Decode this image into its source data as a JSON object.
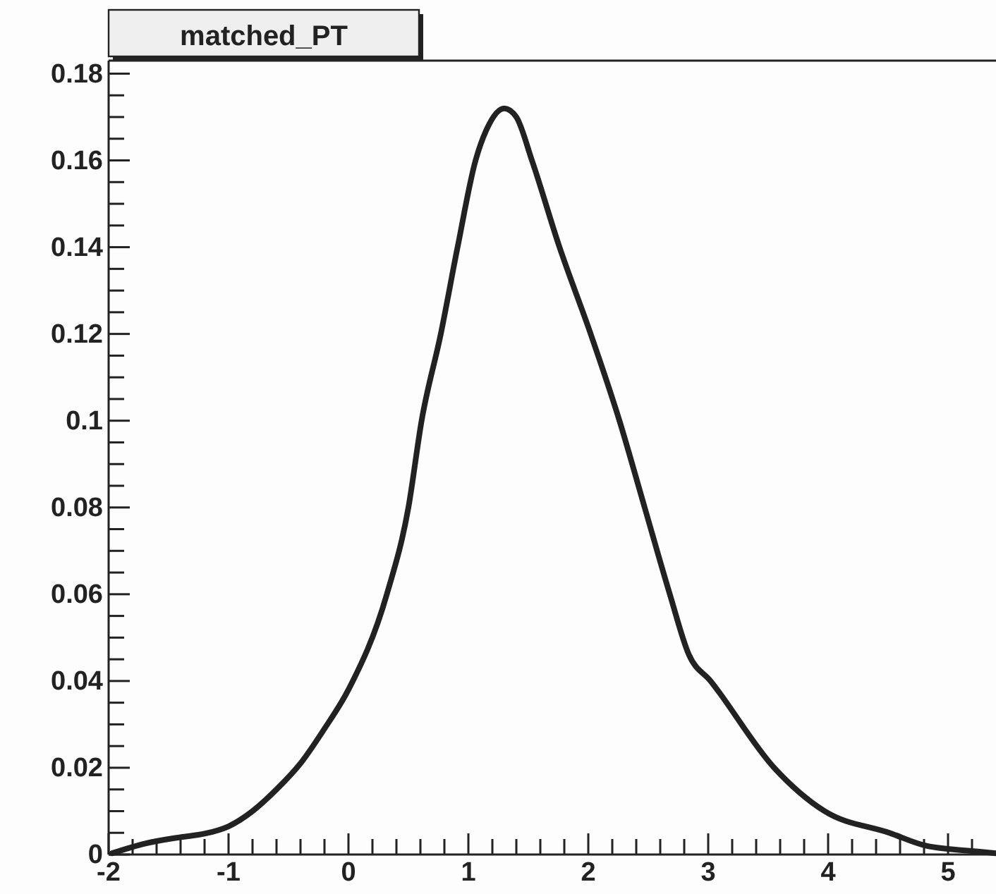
{
  "chart_data": {
    "type": "line",
    "title": "matched_PT",
    "x": [
      -1.97,
      -1.7,
      -1.4,
      -1.2,
      -1.0,
      -0.8,
      -0.6,
      -0.4,
      -0.2,
      0.0,
      0.32,
      0.5,
      0.61,
      0.77,
      0.91,
      1.06,
      1.15,
      1.3,
      1.4,
      1.53,
      1.76,
      2.02,
      2.26,
      2.47,
      2.68,
      2.84,
      3.02,
      3.55,
      3.97,
      4.51,
      4.82,
      5.25,
      5.4
    ],
    "series": [
      {
        "color": "#222222",
        "values": [
          0.0003,
          0.0025,
          0.004,
          0.0048,
          0.0065,
          0.01,
          0.015,
          0.021,
          0.029,
          0.038,
          0.06,
          0.08,
          0.1,
          0.12,
          0.14,
          0.16,
          0.167,
          0.172,
          0.17,
          0.16,
          0.14,
          0.12,
          0.1,
          0.08,
          0.06,
          0.046,
          0.04,
          0.02,
          0.01,
          0.005,
          0.002,
          0.0007,
          0.0003
        ]
      }
    ],
    "xlim": [
      -2,
      5.4
    ],
    "ylim": [
      0,
      0.183
    ],
    "xticks": [
      -2,
      {
        "value": -1.8,
        "label": null
      },
      {
        "value": -1.6,
        "label": null
      },
      {
        "value": -1.4,
        "label": null
      },
      {
        "value": -1.2,
        "label": null
      },
      -1,
      {
        "value": -0.8,
        "label": null
      },
      {
        "value": -0.6,
        "label": null
      },
      {
        "value": -0.4,
        "label": null
      },
      {
        "value": -0.2,
        "label": null
      },
      0,
      {
        "value": 0.2,
        "label": null
      },
      {
        "value": 0.4,
        "label": null
      },
      {
        "value": 0.6,
        "label": null
      },
      {
        "value": 0.8,
        "label": null
      },
      1,
      {
        "value": 1.2,
        "label": null
      },
      {
        "value": 1.4,
        "label": null
      },
      {
        "value": 1.6,
        "label": null
      },
      {
        "value": 1.8,
        "label": null
      },
      2,
      {
        "value": 2.2,
        "label": null
      },
      {
        "value": 2.4,
        "label": null
      },
      {
        "value": 2.6,
        "label": null
      },
      {
        "value": 2.8,
        "label": null
      },
      3,
      {
        "value": 3.2,
        "label": null
      },
      {
        "value": 3.4,
        "label": null
      },
      {
        "value": 3.6,
        "label": null
      },
      {
        "value": 3.8,
        "label": null
      },
      4,
      {
        "value": 4.2,
        "label": null
      },
      {
        "value": 4.4,
        "label": null
      },
      {
        "value": 4.6,
        "label": null
      },
      {
        "value": 4.8,
        "label": null
      },
      5,
      {
        "value": 5.2,
        "label": null
      }
    ],
    "yticks": [
      0,
      {
        "value": 0.005,
        "label": null
      },
      {
        "value": 0.01,
        "label": null
      },
      {
        "value": 0.015,
        "label": null
      },
      0.02,
      {
        "value": 0.025,
        "label": null
      },
      {
        "value": 0.03,
        "label": null
      },
      {
        "value": 0.035,
        "label": null
      },
      0.04,
      {
        "value": 0.045,
        "label": null
      },
      {
        "value": 0.05,
        "label": null
      },
      {
        "value": 0.055,
        "label": null
      },
      0.06,
      {
        "value": 0.065,
        "label": null
      },
      {
        "value": 0.07,
        "label": null
      },
      {
        "value": 0.075,
        "label": null
      },
      0.08,
      {
        "value": 0.085,
        "label": null
      },
      {
        "value": 0.09,
        "label": null
      },
      {
        "value": 0.095,
        "label": null
      },
      0.1,
      {
        "value": 0.105,
        "label": null
      },
      {
        "value": 0.11,
        "label": null
      },
      {
        "value": 0.115,
        "label": null
      },
      0.12,
      {
        "value": 0.125,
        "label": null
      },
      {
        "value": 0.13,
        "label": null
      },
      {
        "value": 0.135,
        "label": null
      },
      0.14,
      {
        "value": 0.145,
        "label": null
      },
      {
        "value": 0.15,
        "label": null
      },
      {
        "value": 0.155,
        "label": null
      },
      0.16,
      {
        "value": 0.165,
        "label": null
      },
      {
        "value": 0.17,
        "label": null
      },
      {
        "value": 0.175,
        "label": null
      },
      0.18
    ],
    "grid": false,
    "marker": "none",
    "line_style": "solid"
  }
}
